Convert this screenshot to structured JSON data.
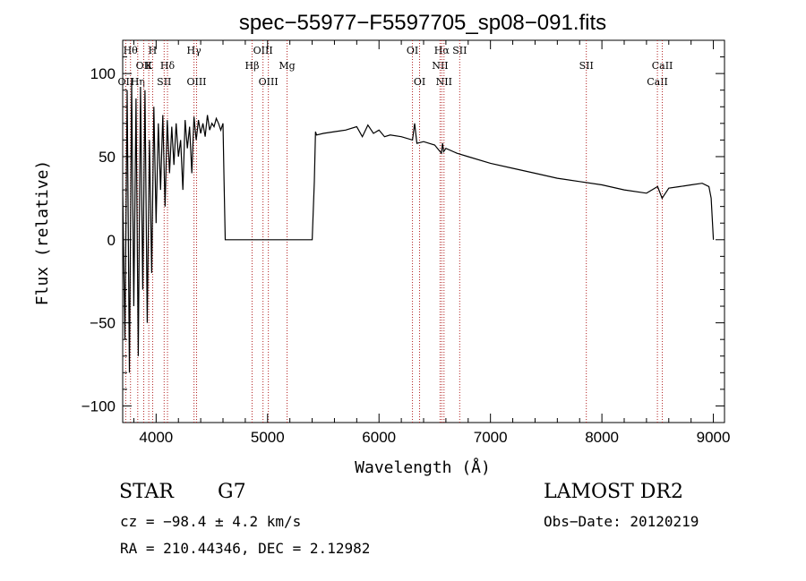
{
  "chart_data": {
    "type": "line",
    "title": "spec−55977−F5597705_sp08−091.fits",
    "xlabel": "Wavelength (Å)",
    "ylabel": "Flux (relative)",
    "xlim": [
      3700,
      9100
    ],
    "ylim": [
      -110,
      120
    ],
    "x_ticks": [
      4000,
      5000,
      6000,
      7000,
      8000,
      9000
    ],
    "y_ticks": [
      -100,
      -50,
      0,
      50,
      100
    ],
    "grid": false,
    "series": [
      {
        "x": [
          3700,
          3720,
          3740,
          3760,
          3780,
          3800,
          3820,
          3840,
          3860,
          3880,
          3900,
          3920,
          3940,
          3960,
          3980,
          4000,
          4020,
          4040,
          4060,
          4080,
          4100,
          4120,
          4140,
          4160,
          4180,
          4200,
          4220,
          4240,
          4260,
          4280,
          4300,
          4320,
          4340,
          4360,
          4380,
          4400,
          4420,
          4440,
          4460,
          4480,
          4500,
          4520,
          4540,
          4560,
          4580,
          4600,
          4610,
          4620,
          5000,
          5400,
          5420,
          5430,
          5440,
          5500,
          5600,
          5700,
          5800,
          5850,
          5900,
          5950,
          6000,
          6050,
          6100,
          6200,
          6300,
          6320,
          6340,
          6400,
          6500,
          6560,
          6570,
          6580,
          6600,
          6700,
          6800,
          7000,
          7200,
          7400,
          7600,
          7800,
          8000,
          8200,
          8400,
          8500,
          8540,
          8600,
          8700,
          8800,
          8900,
          8960,
          8980,
          9000
        ],
        "values": [
          30,
          -60,
          90,
          -80,
          95,
          -40,
          85,
          -70,
          92,
          -30,
          90,
          -50,
          60,
          -20,
          80,
          10,
          70,
          30,
          75,
          20,
          72,
          40,
          68,
          45,
          70,
          50,
          60,
          30,
          72,
          55,
          68,
          40,
          74,
          60,
          72,
          64,
          70,
          62,
          75,
          66,
          70,
          68,
          73,
          70,
          66,
          70,
          35,
          0,
          0,
          0,
          35,
          65,
          63,
          64,
          65,
          66,
          68,
          62,
          69,
          64,
          66,
          62,
          63,
          62,
          60,
          70,
          58,
          59,
          57,
          52,
          58,
          53,
          55,
          52,
          50,
          46,
          43,
          40,
          37,
          35,
          33,
          30,
          28,
          32,
          25,
          31,
          32,
          33,
          34,
          32,
          25,
          0
        ]
      }
    ],
    "line_annotations": [
      {
        "x": 3727,
        "label": "OII",
        "row": 2
      },
      {
        "x": 3770,
        "label": "Hθ",
        "row": 0
      },
      {
        "x": 3835,
        "label": "Hη",
        "row": 2
      },
      {
        "x": 3889,
        "label": "OII",
        "row": 1
      },
      {
        "x": 3934,
        "label": "K",
        "row": 1
      },
      {
        "x": 3969,
        "label": "H",
        "row": 0
      },
      {
        "x": 4072,
        "label": "SII",
        "row": 2
      },
      {
        "x": 4102,
        "label": "Hδ",
        "row": 1
      },
      {
        "x": 4340,
        "label": "Hγ",
        "row": 0
      },
      {
        "x": 4363,
        "label": "OIII",
        "row": 2
      },
      {
        "x": 4861,
        "label": "Hβ",
        "row": 1
      },
      {
        "x": 4959,
        "label": "OIII",
        "row": 0
      },
      {
        "x": 5007,
        "label": "OIII",
        "row": 2
      },
      {
        "x": 5175,
        "label": "Mg",
        "row": 1
      },
      {
        "x": 6300,
        "label": "OI",
        "row": 0
      },
      {
        "x": 6364,
        "label": "OI",
        "row": 2
      },
      {
        "x": 6548,
        "label": "NII",
        "row": 1
      },
      {
        "x": 6563,
        "label": "Hα",
        "row": 0
      },
      {
        "x": 6583,
        "label": "NII",
        "row": 2
      },
      {
        "x": 6724,
        "label": "SII",
        "row": 0
      },
      {
        "x": 7860,
        "label": "SII",
        "row": 1
      },
      {
        "x": 8498,
        "label": "CaII",
        "row": 2
      },
      {
        "x": 8542,
        "label": "CaII",
        "row": 1
      }
    ]
  },
  "info": {
    "object_class": "STAR",
    "subclass": "G7",
    "survey": "LAMOST DR2",
    "cz": "cz = −98.4 ± 4.2 km/s",
    "obs_date": "Obs−Date: 20120219",
    "coords": "RA = 210.44346, DEC =    2.12982"
  }
}
